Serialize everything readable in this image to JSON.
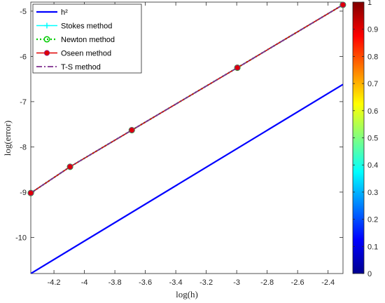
{
  "chart_data": {
    "type": "line",
    "xlabel": "log(h)",
    "ylabel": "log(error)",
    "xlim": [
      -4.3521,
      -2.302
    ],
    "ylim": [
      -10.8,
      -4.8
    ],
    "xticks": [
      -4.2,
      -4,
      -3.8,
      -3.6,
      -3.4,
      -3.2,
      -3,
      -2.8,
      -2.6,
      -2.4
    ],
    "yticks": [
      -10,
      -9,
      -8,
      -7,
      -6,
      -5
    ],
    "grid": false,
    "legend_position": "top-left",
    "series": [
      {
        "name": "h²",
        "color": "#0000FF",
        "style": "solid",
        "marker": "none",
        "x": [
          -4.3521,
          -2.3026
        ],
        "y": [
          -10.8,
          -6.62
        ]
      },
      {
        "name": "Stokes method",
        "color": "#00FFFF",
        "style": "solid",
        "marker": "plus",
        "x": [
          -4.3521,
          -4.0943,
          -3.6889,
          -2.9957,
          -2.3026
        ],
        "y": [
          -9.02,
          -8.44,
          -7.63,
          -6.25,
          -4.86
        ]
      },
      {
        "name": "Newton method",
        "color": "#00CC00",
        "style": "dotted",
        "marker": "circle",
        "x": [
          -4.3521,
          -4.0943,
          -3.6889,
          -2.9957,
          -2.3026
        ],
        "y": [
          -9.02,
          -8.44,
          -7.63,
          -6.25,
          -4.86
        ]
      },
      {
        "name": "Oseen method",
        "color": "#E00000",
        "style": "solid",
        "marker": "square",
        "x": [
          -4.3521,
          -4.0943,
          -3.6889,
          -2.9957,
          -2.3026
        ],
        "y": [
          -9.02,
          -8.44,
          -7.63,
          -6.25,
          -4.86
        ]
      },
      {
        "name": "T-S method",
        "color": "#7E2F8E",
        "style": "dashdot",
        "marker": "none",
        "x": [
          -4.3521,
          -4.0943,
          -3.6889,
          -2.9957,
          -2.3026
        ],
        "y": [
          -9.02,
          -8.44,
          -7.63,
          -6.25,
          -4.86
        ]
      }
    ],
    "colorbar": {
      "colormap": "jet",
      "range": [
        0,
        1
      ],
      "ticks": [
        0,
        0.1,
        0.2,
        0.3,
        0.4,
        0.5,
        0.6,
        0.7,
        0.8,
        0.9,
        1
      ]
    }
  }
}
